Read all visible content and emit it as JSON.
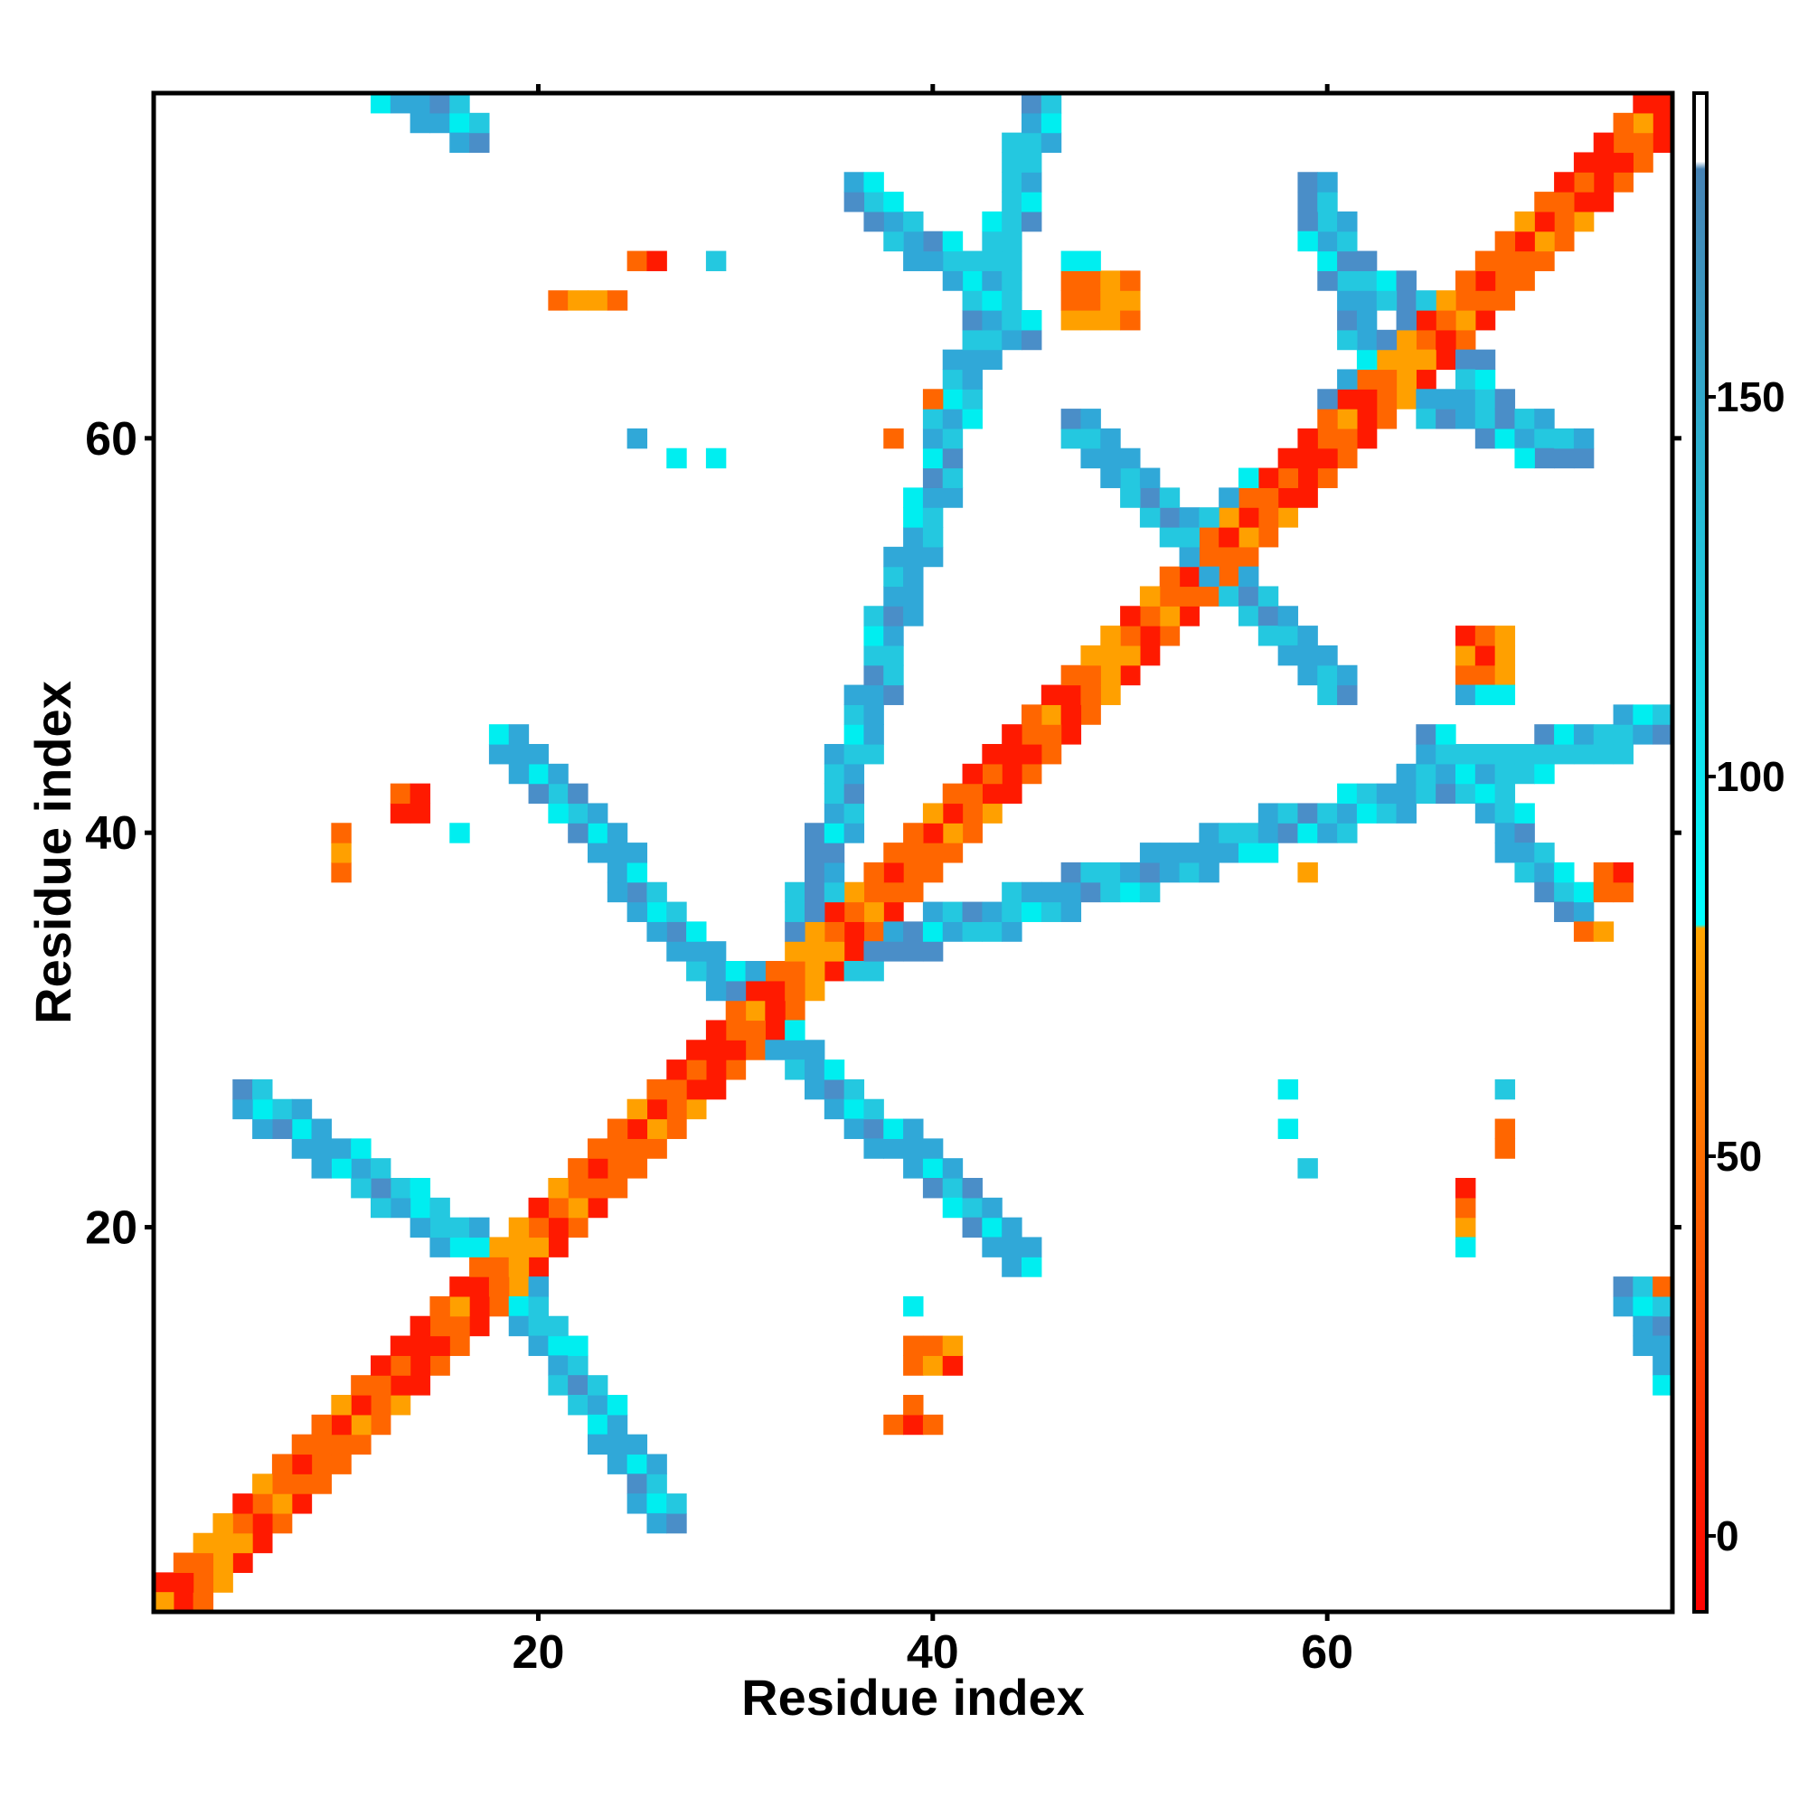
{
  "chart_data": {
    "type": "heatmap",
    "title": "",
    "xlabel": "Residue index",
    "ylabel": "Residue index",
    "xlim": [
      1,
      77
    ],
    "ylim": [
      1,
      77
    ],
    "x_ticks": [
      20,
      40,
      60
    ],
    "y_ticks": [
      20,
      40,
      60
    ],
    "colorbar": {
      "range": [
        -10,
        190
      ],
      "ticks": [
        0,
        50,
        100,
        150
      ],
      "stops": [
        {
          "value": -10,
          "color": "#ff0000"
        },
        {
          "value": 80,
          "color": "#ffa500"
        },
        {
          "value": 80.5,
          "color": "#00ffff"
        },
        {
          "value": 180,
          "color": "#4682b4"
        },
        {
          "value": 181,
          "color": "#ffffff"
        },
        {
          "value": 190,
          "color": "#ffffff"
        }
      ]
    },
    "colors": {
      "red": "#ff1a00",
      "orange": "#ff6600",
      "amber": "#ffa000",
      "cyan": "#00eef0",
      "lightblue": "#24c8e0",
      "blue": "#30a8d8",
      "steelblue": "#4a8ec8"
    },
    "segments": [
      {
        "kind": "a",
        "x": [
          2,
          17
        ],
        "y": [
          1,
          16
        ]
      },
      {
        "kind": "a",
        "x": [
          1,
          16
        ],
        "y": [
          2,
          17
        ]
      },
      {
        "kind": "a",
        "x": [
          18,
          31
        ],
        "y": [
          17,
          30
        ]
      },
      {
        "kind": "a",
        "x": [
          17,
          30
        ],
        "y": [
          18,
          31
        ]
      },
      {
        "kind": "a",
        "x": [
          32,
          46
        ],
        "y": [
          31,
          45
        ]
      },
      {
        "kind": "a",
        "x": [
          31,
          45
        ],
        "y": [
          32,
          46
        ]
      },
      {
        "kind": "a",
        "x": [
          47,
          53
        ],
        "y": [
          46,
          52
        ]
      },
      {
        "kind": "a",
        "x": [
          46,
          52
        ],
        "y": [
          47,
          53
        ]
      },
      {
        "kind": "a",
        "x": [
          55,
          64
        ],
        "y": [
          54,
          63
        ]
      },
      {
        "kind": "a",
        "x": [
          54,
          63
        ],
        "y": [
          55,
          64
        ]
      },
      {
        "kind": "a",
        "x": [
          65,
          77
        ],
        "y": [
          64,
          76
        ]
      },
      {
        "kind": "a",
        "x": [
          64,
          76
        ],
        "y": [
          65,
          77
        ]
      },
      {
        "kind": "b",
        "x": [
          18,
          26
        ],
        "y": [
          17,
          5
        ]
      },
      {
        "kind": "b",
        "x": [
          17,
          5
        ],
        "y": [
          18,
          26
        ]
      },
      {
        "kind": "b",
        "x": [
          31,
          44
        ],
        "y": [
          30,
          18
        ]
      },
      {
        "kind": "b",
        "x": [
          30,
          18
        ],
        "y": [
          31,
          44
        ]
      },
      {
        "kind": "b",
        "x": [
          32,
          45
        ],
        "y": [
          31,
          76
        ]
      },
      {
        "kind": "b",
        "x": [
          31,
          76
        ],
        "y": [
          32,
          45
        ]
      },
      {
        "kind": "b",
        "x": [
          53,
          60
        ],
        "y": [
          54,
          47
        ]
      },
      {
        "kind": "b",
        "x": [
          54,
          47
        ],
        "y": [
          53,
          60
        ]
      },
      {
        "kind": "b",
        "x": [
          54,
          62
        ],
        "y": [
          55,
          61
        ]
      },
      {
        "kind": "b",
        "x": [
          55,
          61
        ],
        "y": [
          54,
          62
        ]
      },
      {
        "kind": "b",
        "x": [
          63,
          72
        ],
        "y": [
          62,
          59
        ]
      },
      {
        "kind": "b",
        "x": [
          62,
          59
        ],
        "y": [
          63,
          72
        ]
      },
      {
        "kind": "b",
        "x": [
          64,
          70
        ],
        "y": [
          66,
          59
        ]
      },
      {
        "kind": "b",
        "x": [
          66,
          59
        ],
        "y": [
          64,
          70
        ]
      },
      {
        "kind": "b",
        "x": [
          65,
          72
        ],
        "y": [
          44,
          36
        ]
      },
      {
        "kind": "b",
        "x": [
          44,
          36
        ],
        "y": [
          65,
          72
        ]
      },
      {
        "kind": "b",
        "x": [
          12,
          16
        ],
        "y": [
          77,
          75
        ]
      },
      {
        "kind": "b",
        "x": [
          75,
          77
        ],
        "y": [
          16,
          12
        ]
      }
    ],
    "patches": [
      {
        "x": 13,
        "y": 41,
        "w": 2,
        "h": 2,
        "kind": "c"
      },
      {
        "x": 10,
        "y": 38,
        "w": 1,
        "h": 3,
        "kind": "c"
      },
      {
        "x": 16,
        "y": 40,
        "w": 1,
        "h": 1,
        "kind": "h"
      },
      {
        "x": 25,
        "y": 69,
        "w": 2,
        "h": 1,
        "kind": "c"
      },
      {
        "x": 29,
        "y": 69,
        "w": 1,
        "h": 1,
        "kind": "h"
      },
      {
        "x": 21,
        "y": 67,
        "w": 4,
        "h": 1,
        "kind": "c"
      },
      {
        "x": 25,
        "y": 60,
        "w": 1,
        "h": 1,
        "kind": "h"
      },
      {
        "x": 27,
        "y": 59,
        "w": 1,
        "h": 1,
        "kind": "h"
      },
      {
        "x": 29,
        "y": 59,
        "w": 1,
        "h": 1,
        "kind": "h"
      },
      {
        "x": 38,
        "y": 60,
        "w": 1,
        "h": 1,
        "kind": "c"
      },
      {
        "x": 40,
        "y": 62,
        "w": 1,
        "h": 1,
        "kind": "c"
      },
      {
        "x": 47,
        "y": 66,
        "w": 4,
        "h": 3,
        "kind": "c"
      },
      {
        "x": 47,
        "y": 68,
        "w": 2,
        "h": 2,
        "kind": "h"
      },
      {
        "x": 67,
        "y": 48,
        "w": 3,
        "h": 3,
        "kind": "c"
      },
      {
        "x": 67,
        "y": 47,
        "w": 3,
        "h": 1,
        "kind": "h"
      },
      {
        "x": 66,
        "y": 43,
        "w": 2,
        "h": 2,
        "kind": "c"
      },
      {
        "x": 61,
        "y": 40,
        "w": 1,
        "h": 1,
        "kind": "c"
      },
      {
        "x": 59,
        "y": 38,
        "w": 1,
        "h": 1,
        "kind": "c"
      },
      {
        "x": 58,
        "y": 27,
        "w": 1,
        "h": 1,
        "kind": "h"
      },
      {
        "x": 58,
        "y": 25,
        "w": 1,
        "h": 1,
        "kind": "h"
      },
      {
        "x": 59,
        "y": 23,
        "w": 1,
        "h": 1,
        "kind": "h"
      },
      {
        "x": 69,
        "y": 27,
        "w": 1,
        "h": 1,
        "kind": "h"
      },
      {
        "x": 69,
        "y": 24,
        "w": 1,
        "h": 2,
        "kind": "c"
      },
      {
        "x": 67,
        "y": 20,
        "w": 1,
        "h": 3,
        "kind": "c"
      },
      {
        "x": 67,
        "y": 19,
        "w": 1,
        "h": 1,
        "kind": "h"
      },
      {
        "x": 39,
        "y": 16,
        "w": 1,
        "h": 1,
        "kind": "h"
      },
      {
        "x": 39,
        "y": 13,
        "w": 3,
        "h": 2,
        "kind": "c"
      },
      {
        "x": 38,
        "y": 10,
        "w": 3,
        "h": 1,
        "kind": "c"
      },
      {
        "x": 39,
        "y": 11,
        "w": 1,
        "h": 1,
        "kind": "c"
      },
      {
        "x": 75,
        "y": 17,
        "w": 1,
        "h": 1,
        "kind": "c"
      },
      {
        "x": 77,
        "y": 17,
        "w": 1,
        "h": 1,
        "kind": "c"
      },
      {
        "x": 74,
        "y": 37,
        "w": 2,
        "h": 2,
        "kind": "c"
      },
      {
        "x": 73,
        "y": 35,
        "w": 2,
        "h": 1,
        "kind": "c"
      }
    ]
  }
}
